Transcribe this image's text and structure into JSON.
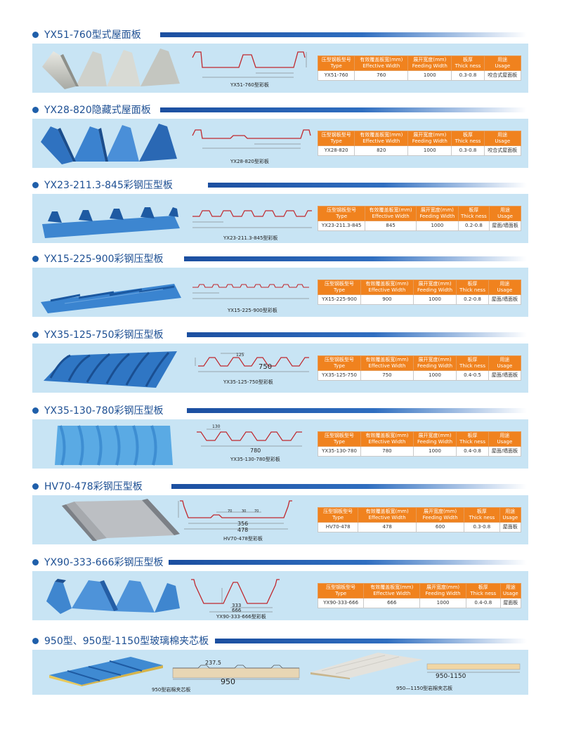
{
  "colors": {
    "accent": "#1f5faa",
    "header_bg": "#f0821e",
    "panel_bg": "#c8e4f4",
    "profile_line": "#c0282e"
  },
  "table_headers": [
    {
      "cn": "压型钢板型号",
      "en": "Type"
    },
    {
      "cn": "有效覆盖板宽(mm)",
      "en": "Effective Width"
    },
    {
      "cn": "展开宽度(mm)",
      "en": "Feeding Width"
    },
    {
      "cn": "板厚",
      "en": "Thick ness"
    },
    {
      "cn": "用途",
      "en": "Usage"
    }
  ],
  "products": [
    {
      "title": "YX51-760型式屋面板",
      "caption": "YX51-760型彩板",
      "type": "YX51-760",
      "effective": "760",
      "feeding": "1000",
      "thickness": "0.3-0.8",
      "usage": "咬合式屋面板",
      "dims": []
    },
    {
      "title": "YX28-820隐藏式屋面板",
      "caption": "YX28-820型彩板",
      "type": "YX28-820",
      "effective": "820",
      "feeding": "1000",
      "thickness": "0.3-0.8",
      "usage": "咬合式屋面板",
      "dims": []
    },
    {
      "title": "YX23-211.3-845彩钢压型板",
      "caption": "YX23-211.3-845型彩板",
      "type": "YX23-211.3-845",
      "effective": "845",
      "feeding": "1000",
      "thickness": "0.2-0.8",
      "usage": "屋面/墙面板",
      "dims": []
    },
    {
      "title": "YX15-225-900彩钢压型板",
      "caption": "YX15-225-900型彩板",
      "type": "YX15-225-900",
      "effective": "900",
      "feeding": "1000",
      "thickness": "0.2-0.8",
      "usage": "屋面/墙面板",
      "dims": []
    },
    {
      "title": "YX35-125-750彩钢压型板",
      "caption": "YX35-125-750型彩板",
      "type": "YX35-125-750",
      "effective": "750",
      "feeding": "1000",
      "thickness": "0.4-0.5",
      "usage": "屋面/墙面板",
      "dims": [
        "125",
        "750"
      ]
    },
    {
      "title": "YX35-130-780彩钢压型板",
      "caption": "YX35-130-780型彩板",
      "type": "YX35-130-780",
      "effective": "780",
      "feeding": "1000",
      "thickness": "0.4-0.8",
      "usage": "屋面/墙面板",
      "dims": [
        "130",
        "780"
      ]
    },
    {
      "title": "HV70-478彩钢压型板",
      "caption": "HV70-478型彩板",
      "type": "HV70-478",
      "effective": "478",
      "feeding": "600",
      "thickness": "0.3-0.8",
      "usage": "屋面板",
      "dims": [
        "70",
        "30",
        "70",
        "356",
        "478"
      ]
    },
    {
      "title": "YX90-333-666彩钢压型板",
      "caption": "YX90-333-666型彩板",
      "type": "YX90-333-666",
      "effective": "666",
      "feeding": "1000",
      "thickness": "0.4-0.8",
      "usage": "屋面板",
      "dims": [
        "333",
        "666"
      ]
    }
  ],
  "sandwich": {
    "title": "950型、950型-1150型玻璃棉夹芯板",
    "left_caption": "950型岩棉夹芯板",
    "right_caption": "950—1150型岩棉夹芯板",
    "dims_left": [
      "237.5",
      "950"
    ],
    "dims_right": [
      "950-1150"
    ]
  }
}
